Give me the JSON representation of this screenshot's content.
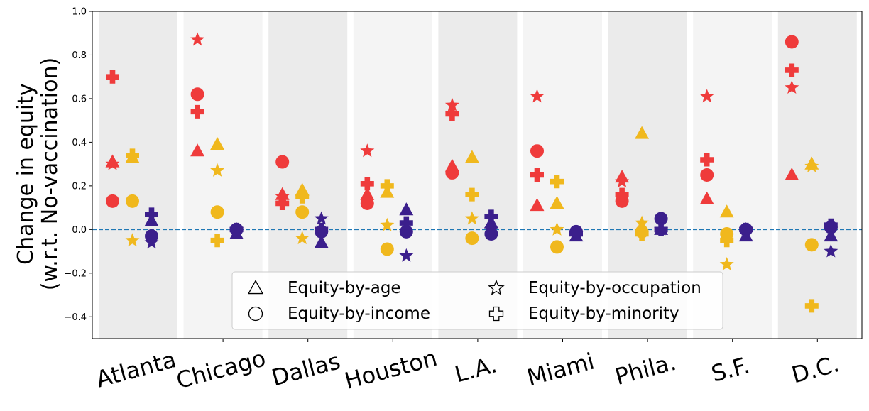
{
  "chart_data": {
    "type": "scatter",
    "ylabel_line1": "Change in equity",
    "ylabel_line2": "(w.r.t. No-vaccination)",
    "categories": [
      "Atlanta",
      "Chicago",
      "Dallas",
      "Houston",
      "L.A.",
      "Miami",
      "Phila.",
      "S.F.",
      "D.C."
    ],
    "ylim": [
      -0.5,
      1.0
    ],
    "yticks": [
      -0.4,
      -0.2,
      0.0,
      0.2,
      0.4,
      0.6,
      0.8,
      1.0
    ],
    "ytick_labels": [
      "−0.4",
      "−0.2",
      "0.0",
      "0.2",
      "0.4",
      "0.6",
      "0.8",
      "1.0"
    ],
    "reference_line": 0.0,
    "legend_placement": "lower-center",
    "colors": {
      "red": "#ef3b3b",
      "yellow": "#f0b81d",
      "purple": "#3b1f8c",
      "band_dark": "#ebebeb",
      "band_light": "#f4f4f4",
      "reference_line": "#1f77b4"
    },
    "legend": [
      {
        "marker": "triangle",
        "label": "Equity-by-age"
      },
      {
        "marker": "star",
        "label": "Equity-by-occupation"
      },
      {
        "marker": "circle",
        "label": "Equity-by-income"
      },
      {
        "marker": "plus",
        "label": "Equity-by-minority"
      }
    ],
    "series": [
      {
        "marker": "triangle",
        "color": "red",
        "values": [
          0.31,
          0.36,
          0.16,
          0.16,
          0.29,
          0.11,
          0.24,
          0.14,
          0.25
        ]
      },
      {
        "marker": "circle",
        "color": "red",
        "values": [
          0.13,
          0.62,
          0.31,
          0.12,
          0.26,
          0.36,
          0.13,
          0.25,
          0.86
        ]
      },
      {
        "marker": "star",
        "color": "red",
        "values": [
          0.3,
          0.87,
          0.15,
          0.36,
          0.57,
          0.61,
          0.22,
          0.61,
          0.65
        ]
      },
      {
        "marker": "plus",
        "color": "red",
        "values": [
          0.7,
          0.54,
          0.12,
          0.21,
          0.53,
          0.25,
          0.16,
          0.32,
          0.73
        ]
      },
      {
        "marker": "triangle",
        "color": "yellow",
        "values": [
          0.33,
          0.39,
          0.18,
          0.17,
          0.33,
          0.12,
          0.44,
          0.08,
          0.3
        ]
      },
      {
        "marker": "circle",
        "color": "yellow",
        "values": [
          0.13,
          0.08,
          0.08,
          -0.09,
          -0.04,
          -0.08,
          -0.01,
          -0.02,
          -0.07
        ]
      },
      {
        "marker": "star",
        "color": "yellow",
        "values": [
          -0.05,
          0.27,
          -0.04,
          0.02,
          0.05,
          0.0,
          0.03,
          -0.16,
          0.29
        ]
      },
      {
        "marker": "plus",
        "color": "yellow",
        "values": [
          0.34,
          -0.05,
          0.15,
          0.2,
          0.16,
          0.22,
          -0.02,
          -0.05,
          -0.35
        ]
      },
      {
        "marker": "triangle",
        "color": "purple",
        "values": [
          0.04,
          -0.02,
          -0.06,
          0.09,
          0.03,
          -0.03,
          0.0,
          -0.03,
          -0.03
        ]
      },
      {
        "marker": "circle",
        "color": "purple",
        "values": [
          -0.03,
          0.0,
          -0.01,
          -0.01,
          -0.02,
          -0.01,
          0.05,
          0.0,
          0.01
        ]
      },
      {
        "marker": "star",
        "color": "purple",
        "values": [
          -0.06,
          0.0,
          0.05,
          -0.12,
          0.0,
          -0.02,
          0.0,
          0.0,
          -0.1
        ]
      },
      {
        "marker": "plus",
        "color": "purple",
        "values": [
          0.07,
          0.0,
          0.0,
          0.03,
          0.06,
          -0.02,
          0.0,
          0.0,
          0.02
        ]
      }
    ]
  }
}
